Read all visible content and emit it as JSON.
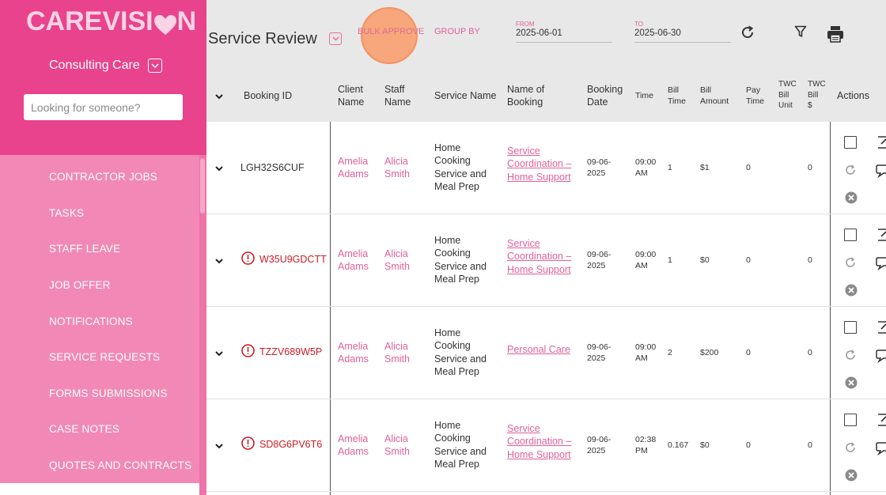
{
  "app": {
    "logo_text": "CAREVISION",
    "org_name": "Consulting Care"
  },
  "sidebar": {
    "search_placeholder": "Looking for someone?",
    "items": [
      {
        "label": "CONTRACTOR JOBS"
      },
      {
        "label": "TASKS"
      },
      {
        "label": "STAFF LEAVE"
      },
      {
        "label": "JOB OFFER"
      },
      {
        "label": "NOTIFICATIONS"
      },
      {
        "label": "SERVICE REQUESTS"
      },
      {
        "label": "FORMS SUBMISSIONS"
      },
      {
        "label": "CASE NOTES"
      },
      {
        "label": "QUOTES AND CONTRACTS"
      }
    ]
  },
  "header": {
    "title": "Service Review",
    "bulk_approve": "BULK APPROVE",
    "group_by": "GROUP BY",
    "from_label": "FROM",
    "from_value": "2025-06-01",
    "to_label": "TO",
    "to_value": "2025-06-30",
    "icons": [
      "refresh-icon",
      "filter-icon",
      "printer-icon"
    ]
  },
  "columns": {
    "booking_id": "Booking ID",
    "client_name": [
      "Client",
      "Name"
    ],
    "staff_name": [
      "Staff",
      "Name"
    ],
    "service_name": "Service Name",
    "name_of_booking": [
      "Name of",
      "Booking"
    ],
    "booking_date": [
      "Booking",
      "Date"
    ],
    "time": "Time",
    "bill_time": [
      "Bill",
      "Time"
    ],
    "bill_amount": [
      "Bill",
      "Amount"
    ],
    "pay_time": [
      "Pay",
      "Time"
    ],
    "twc_bill_unit": [
      "TWC",
      "Bill",
      "Unit"
    ],
    "twc_bill": [
      "TWC",
      "Bill",
      "$"
    ],
    "actions": "Actions"
  },
  "rows": [
    {
      "booking_id": "LGH32S6CUF",
      "error": false,
      "client": [
        "Amelia",
        "Adams"
      ],
      "staff": [
        "Alicia",
        "Smith"
      ],
      "service": [
        "Home",
        "Cooking",
        "Service and",
        "Meal Prep"
      ],
      "booking_name": [
        "Service",
        "Coordination –",
        "Home Support"
      ],
      "date": [
        "09-06-",
        "2025"
      ],
      "time": [
        "09:00",
        "AM"
      ],
      "bill_time": "1",
      "bill_amount": "$1",
      "pay_time": "0",
      "twc_unit": "",
      "twc_bill": "0"
    },
    {
      "booking_id": "W35U9GDCTT",
      "error": true,
      "client": [
        "Amelia",
        "Adams"
      ],
      "staff": [
        "Alicia",
        "Smith"
      ],
      "service": [
        "Home",
        "Cooking",
        "Service and",
        "Meal Prep"
      ],
      "booking_name": [
        "Service",
        "Coordination –",
        "Home Support"
      ],
      "date": [
        "09-06-",
        "2025"
      ],
      "time": [
        "09:00",
        "AM"
      ],
      "bill_time": "1",
      "bill_amount": "$0",
      "pay_time": "0",
      "twc_unit": "",
      "twc_bill": "0"
    },
    {
      "booking_id": "TZZV689W5P",
      "error": true,
      "client": [
        "Amelia",
        "Adams"
      ],
      "staff": [
        "Alicia",
        "Smith"
      ],
      "service": [
        "Home",
        "Cooking",
        "Service and",
        "Meal Prep"
      ],
      "booking_name": [
        "Personal Care"
      ],
      "date": [
        "09-06-",
        "2025"
      ],
      "time": [
        "09:00",
        "AM"
      ],
      "bill_time": "2",
      "bill_amount": "$200",
      "pay_time": "0",
      "twc_unit": "",
      "twc_bill": "0"
    },
    {
      "booking_id": "SD8G6PV6T6",
      "error": true,
      "client": [
        "Amelia",
        "Adams"
      ],
      "staff": [
        "Alicia",
        "Smith"
      ],
      "service": [
        "Home",
        "Cooking",
        "Service and",
        "Meal Prep"
      ],
      "booking_name": [
        "Service",
        "Coordination –",
        "Home Support"
      ],
      "date": [
        "09-06-",
        "2025"
      ],
      "time": [
        "02:38",
        "PM"
      ],
      "bill_time": "0.167",
      "bill_amount": "$0",
      "pay_time": "0",
      "twc_unit": "",
      "twc_bill": "0"
    }
  ],
  "colors": {
    "brand": "#e8438c",
    "sidebar": "#f288b5",
    "accent_text": "#e2609a",
    "error": "#cc1d26",
    "highlight": "#f7a77b"
  }
}
